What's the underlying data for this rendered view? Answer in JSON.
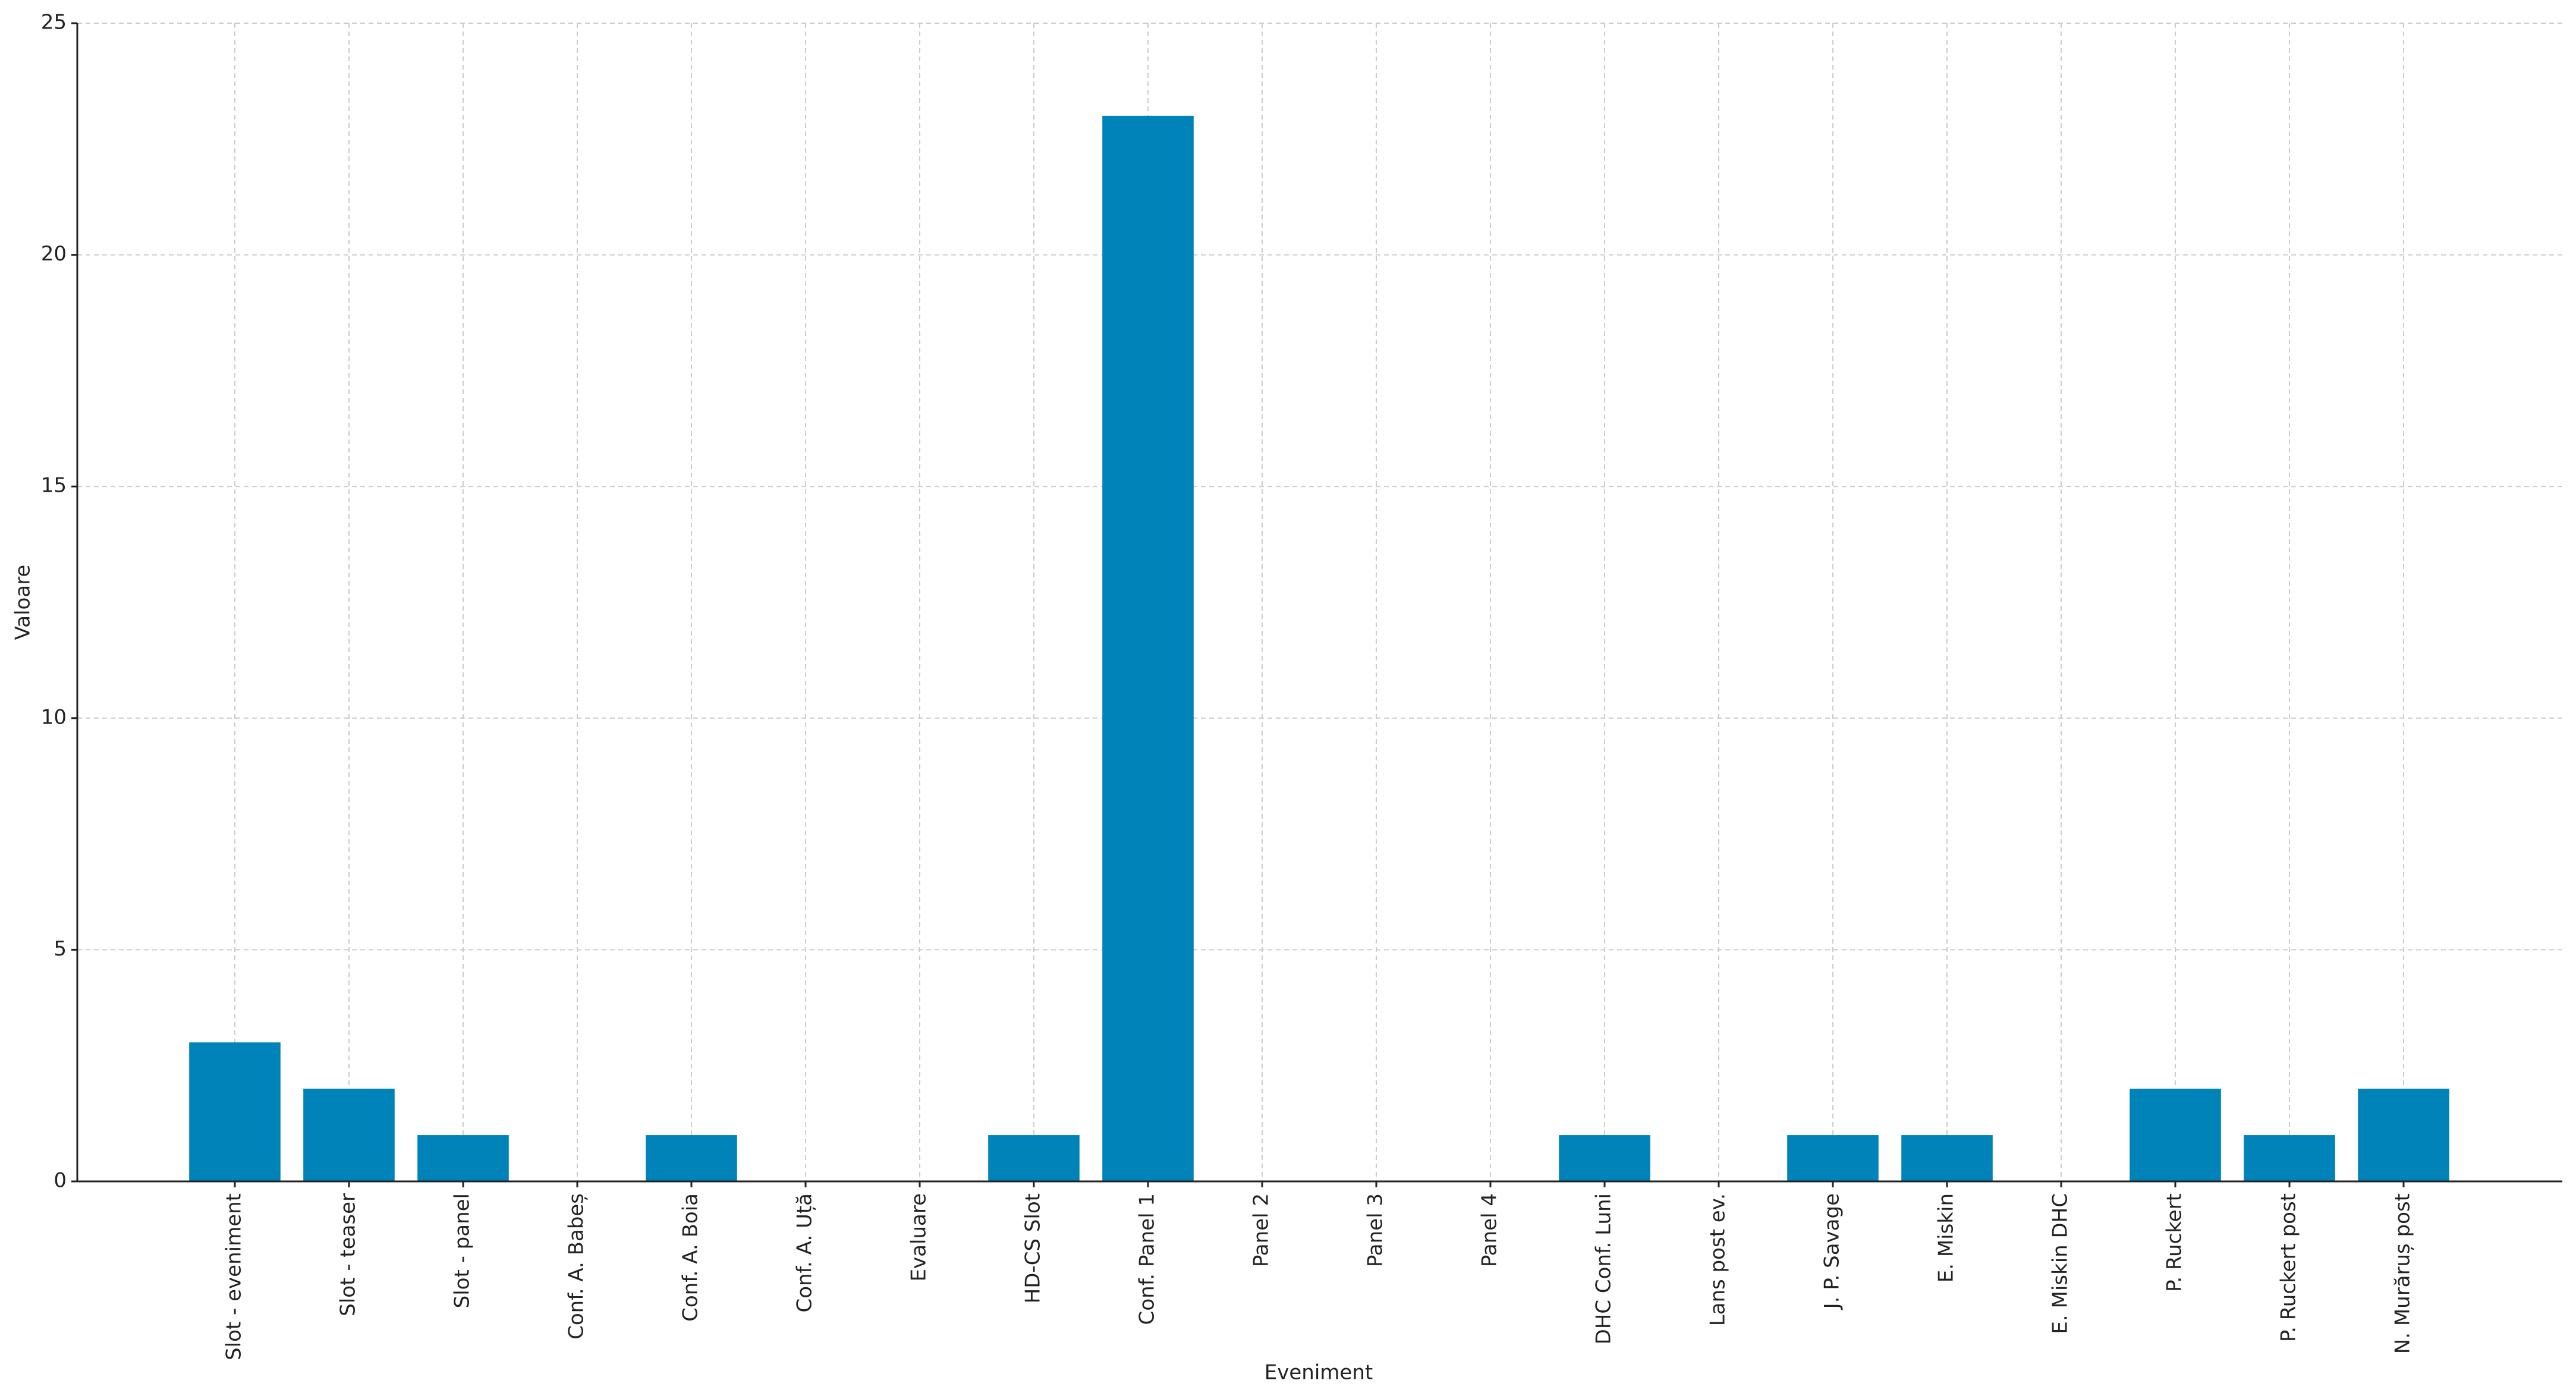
{
  "chart_data": {
    "type": "bar",
    "x_label": "Eveniment",
    "y_label": "Valoare",
    "categories": [
      "Slot - eveniment",
      "Slot - teaser",
      "Slot - panel",
      "Conf. A. Babeș",
      "Conf. A. Boia",
      "Conf. A. Uță",
      "Evaluare",
      "HD-CS Slot",
      "Conf. Panel 1",
      "Panel 2",
      "Panel 3",
      "Panel 4",
      "DHC Conf. Luni",
      "Lans post ev.",
      "J. P. Savage",
      "E. Miskin",
      "E. Miskin DHC",
      "P. Ruckert",
      "P. Ruckert post",
      "N. Murăruș post"
    ],
    "values": [
      3,
      2,
      1,
      0,
      1,
      0,
      0,
      1,
      23,
      0,
      0,
      0,
      1,
      0,
      1,
      1,
      0,
      2,
      1,
      2
    ],
    "color": "#0083b8",
    "ylim": [
      0,
      25
    ],
    "yticks": [
      0,
      5,
      10,
      15,
      20,
      25
    ],
    "grid": true
  }
}
